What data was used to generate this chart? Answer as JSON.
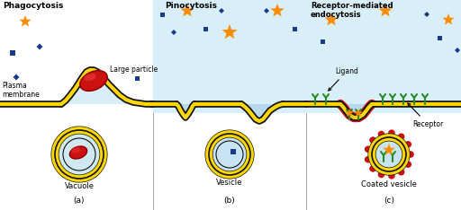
{
  "bg_color": "#ffffff",
  "membrane_yellow": "#FFD700",
  "membrane_black": "#111111",
  "large_particle_color": "#CC1111",
  "pinocytosis_bg": "#d8eef8",
  "star_color": "#FF8C00",
  "square_color": "#1a3a8a",
  "receptor_color": "#CC1111",
  "green_receptor": "#2a8a2a",
  "title_phago": "Phagocytosis",
  "title_pino": "Pinocytosis",
  "title_rme": "Receptor-mediated\nendocytosis",
  "label_plasma": "Plasma\nmembrane",
  "label_large": "Large particle",
  "label_vacuole": "Vacuole",
  "label_vesicle": "Vesicle",
  "label_coated": "Coated vesicle",
  "label_ligand": "Ligand",
  "label_receptor": "Receptor",
  "label_a": "(a)",
  "label_b": "(b)",
  "label_c": "(c)"
}
